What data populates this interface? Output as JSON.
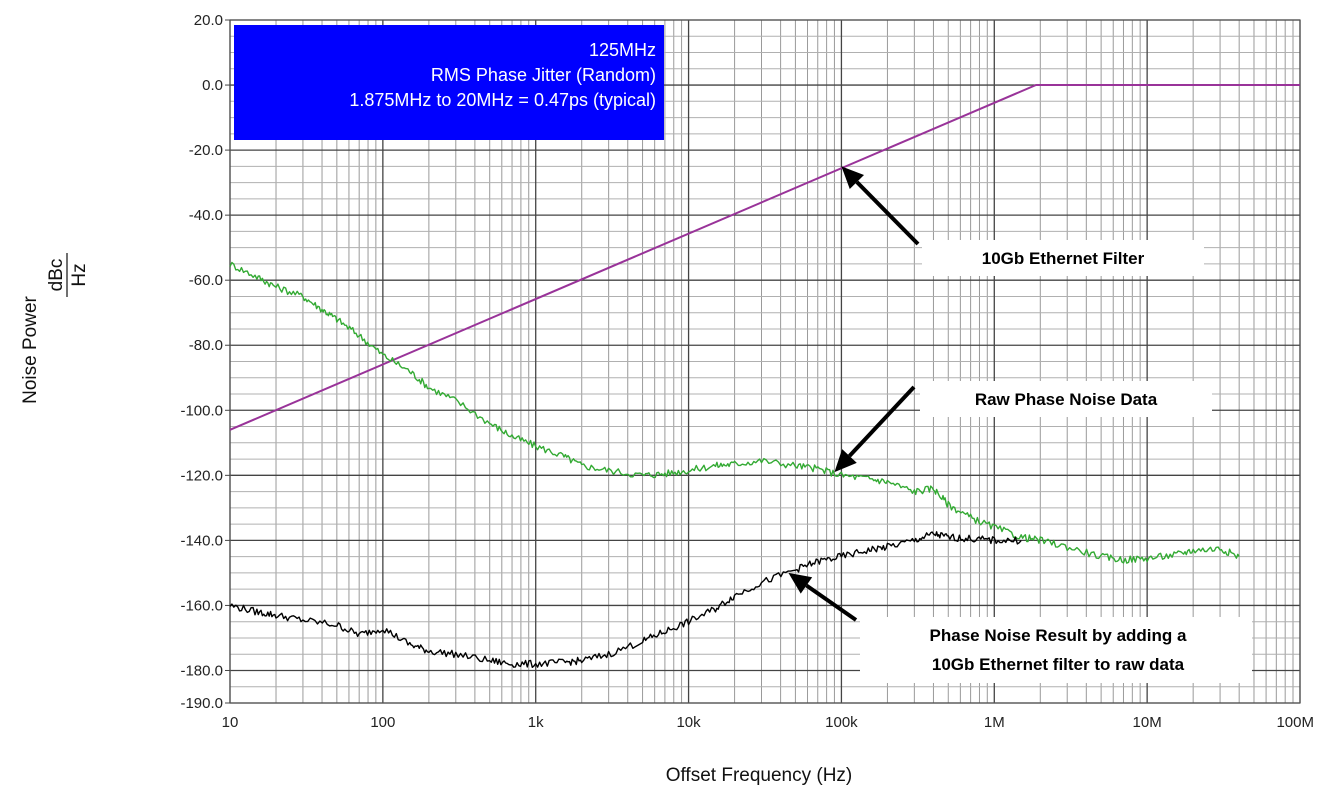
{
  "chart_data": {
    "type": "line",
    "xscale": "log",
    "xlabel": "Offset Frequency (Hz)",
    "ylabel": "Noise Power",
    "ylabel_unit_num": "dBc",
    "ylabel_unit_den": "Hz",
    "xlim": [
      10,
      100000000
    ],
    "ylim": [
      -190,
      20
    ],
    "grid": true,
    "x_ticks": [
      10,
      100,
      1000,
      10000,
      100000,
      1000000,
      10000000,
      100000000
    ],
    "x_tick_labels": [
      "10",
      "100",
      "1k",
      "10k",
      "100k",
      "1M",
      "10M",
      "100M"
    ],
    "y_ticks": [
      20,
      0,
      -20,
      -40,
      -60,
      -80,
      -100,
      -120,
      -140,
      -160,
      -180,
      -190
    ],
    "y_tick_labels": [
      "20.0",
      "0.0",
      "-20.0",
      "-40.0",
      "-60.0",
      "-80.0",
      "-100.0",
      "-120.0",
      "-140.0",
      "-160.0",
      "-180.0",
      "-190.0"
    ],
    "info_box": {
      "lines": [
        "125MHz",
        "RMS Phase Jitter (Random)",
        "1.875MHz to 20MHz = 0.47ps (typical)"
      ],
      "fill": "#0000ff",
      "text_color": "#ffffff",
      "placement": "top-left"
    },
    "series": [
      {
        "color": "#993399",
        "x": [
          10,
          1875000,
          40000000,
          100000000
        ],
        "y": [
          -106,
          0,
          0,
          0
        ]
      },
      {
        "color": "#33aa33",
        "x": [
          10,
          15,
          20,
          30,
          40,
          50,
          70,
          100,
          150,
          200,
          300,
          500,
          700,
          1000,
          1500,
          2000,
          3000,
          5000,
          7000,
          10000,
          15000,
          20000,
          30000,
          50000,
          70000,
          100000,
          150000,
          200000,
          300000,
          400000,
          500000,
          700000,
          1000000,
          1500000,
          2000000,
          3000000,
          5000000,
          7000000,
          10000000,
          15000000,
          20000000,
          30000000,
          40000000
        ],
        "y": [
          -55,
          -59,
          -62,
          -65,
          -69,
          -72,
          -77,
          -83,
          -88,
          -93,
          -97,
          -104,
          -108,
          -111,
          -114,
          -117,
          -118.5,
          -120,
          -119.5,
          -118.5,
          -117,
          -116.5,
          -115.5,
          -117,
          -118,
          -120,
          -121,
          -122,
          -125,
          -124,
          -129,
          -133,
          -136,
          -139,
          -140,
          -142,
          -145,
          -146,
          -145.5,
          -144.5,
          -143,
          -142.5,
          -145
        ]
      },
      {
        "color": "#000000",
        "x": [
          10,
          15,
          20,
          30,
          50,
          70,
          100,
          150,
          200,
          300,
          500,
          700,
          1000,
          1500,
          2000,
          3000,
          5000,
          7000,
          10000,
          15000,
          20000,
          30000,
          50000,
          70000,
          100000,
          150000,
          200000,
          300000,
          400000,
          500000,
          700000,
          1000000,
          1500000
        ],
        "y": [
          -160,
          -162,
          -163,
          -164.5,
          -166,
          -169,
          -167,
          -172,
          -174,
          -175,
          -177,
          -178,
          -178,
          -177.5,
          -177,
          -175,
          -171,
          -168,
          -165,
          -161,
          -157,
          -153,
          -149,
          -146.5,
          -145,
          -143,
          -142,
          -140,
          -138,
          -139,
          -139.5,
          -140,
          -140
        ]
      }
    ],
    "annotations": [
      {
        "text": "10Gb Ethernet Filter",
        "x": 100000,
        "y": -25
      },
      {
        "text": "Raw Phase Noise Data",
        "x": 90000,
        "y": -119
      },
      {
        "text": "Phase Noise Result by adding a",
        "text2": "10Gb Ethernet filter to raw data",
        "x": 45000,
        "y": -150
      }
    ]
  }
}
